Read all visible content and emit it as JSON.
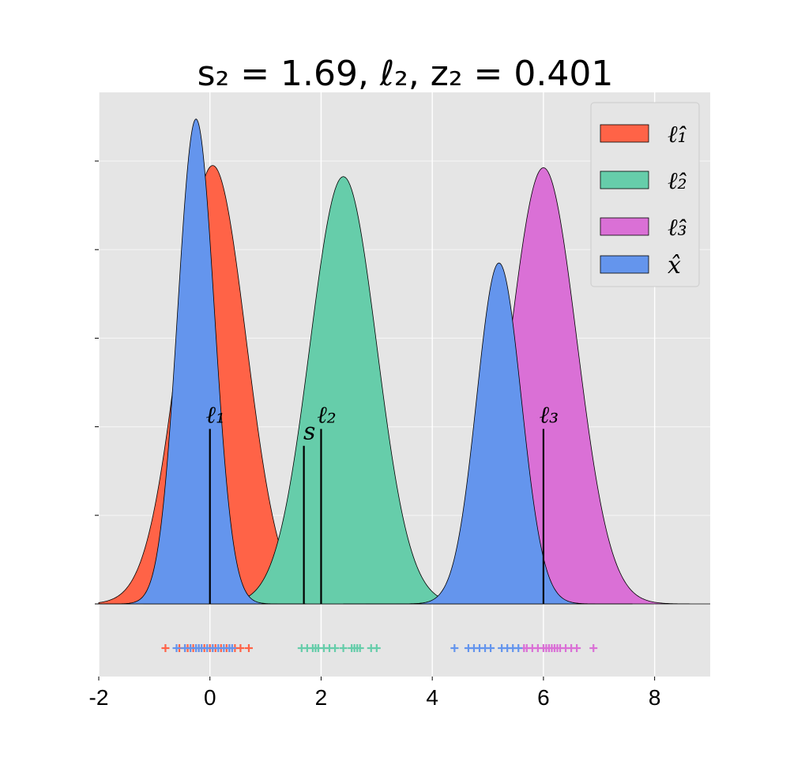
{
  "chart_data": {
    "type": "area",
    "title": "s₂ = 1.69, ℓ₂, z₂ = 0.401",
    "xlabel": "",
    "ylabel": "",
    "xlim": [
      -2,
      9
    ],
    "ylim": [
      0,
      1.1
    ],
    "grid": true,
    "xticks": [
      -2,
      0,
      2,
      4,
      6,
      8
    ],
    "xtick_labels": [
      "-2",
      "0",
      "2",
      "4",
      "6",
      "8"
    ],
    "yticks": [
      0,
      0.2,
      0.4,
      0.6,
      0.8,
      1.0
    ],
    "legend_position": "top-right",
    "series": [
      {
        "name": "ℓ̂₁",
        "color": "#FF6347",
        "components": [
          {
            "mu": 0.05,
            "sigma": 0.6,
            "amp": 0.99
          }
        ]
      },
      {
        "name": "ℓ̂₂",
        "color": "#66CDAA",
        "components": [
          {
            "mu": 2.4,
            "sigma": 0.6,
            "amp": 0.965
          }
        ]
      },
      {
        "name": "ℓ̂₃",
        "color": "#DA70D6",
        "components": [
          {
            "mu": 6.0,
            "sigma": 0.6,
            "amp": 0.985
          }
        ]
      },
      {
        "name": "x̂",
        "color": "#6495ED",
        "components": [
          {
            "mu": -0.25,
            "sigma": 0.33,
            "amp": 1.095
          },
          {
            "mu": 5.2,
            "sigma": 0.4,
            "amp": 0.77
          }
        ]
      }
    ],
    "markers": [
      {
        "label": "ℓ₁",
        "x": 0.0,
        "height": 0.395
      },
      {
        "label": "s",
        "x": 1.69,
        "height": 0.357
      },
      {
        "label": "ℓ₂",
        "x": 2.0,
        "height": 0.395
      },
      {
        "label": "ℓ₃",
        "x": 6.0,
        "height": 0.395
      }
    ],
    "rug": [
      {
        "series": "ℓ̂₁",
        "values": [
          -0.8,
          -0.55,
          -0.45,
          -0.4,
          -0.35,
          -0.3,
          -0.2,
          -0.1,
          0.0,
          0.05,
          0.1,
          0.2,
          0.3,
          0.35,
          0.45,
          0.55,
          0.7
        ]
      },
      {
        "series": "ℓ̂₂",
        "values": [
          1.65,
          1.75,
          1.85,
          1.9,
          1.95,
          2.05,
          2.15,
          2.25,
          2.4,
          2.55,
          2.6,
          2.65,
          2.7,
          2.9,
          3.0
        ]
      },
      {
        "series": "ℓ̂₃",
        "values": [
          5.65,
          5.7,
          5.8,
          5.9,
          6.0,
          6.05,
          6.1,
          6.15,
          6.2,
          6.25,
          6.3,
          6.4,
          6.5,
          6.6,
          6.9
        ]
      },
      {
        "series": "x̂",
        "values": [
          -0.6,
          -0.45,
          -0.35,
          -0.25,
          -0.2,
          -0.15,
          -0.05,
          0.05,
          0.15,
          0.25,
          0.35,
          0.4,
          4.4,
          4.65,
          4.75,
          4.85,
          4.95,
          5.05,
          5.25,
          5.35,
          5.45,
          5.55
        ]
      }
    ]
  }
}
